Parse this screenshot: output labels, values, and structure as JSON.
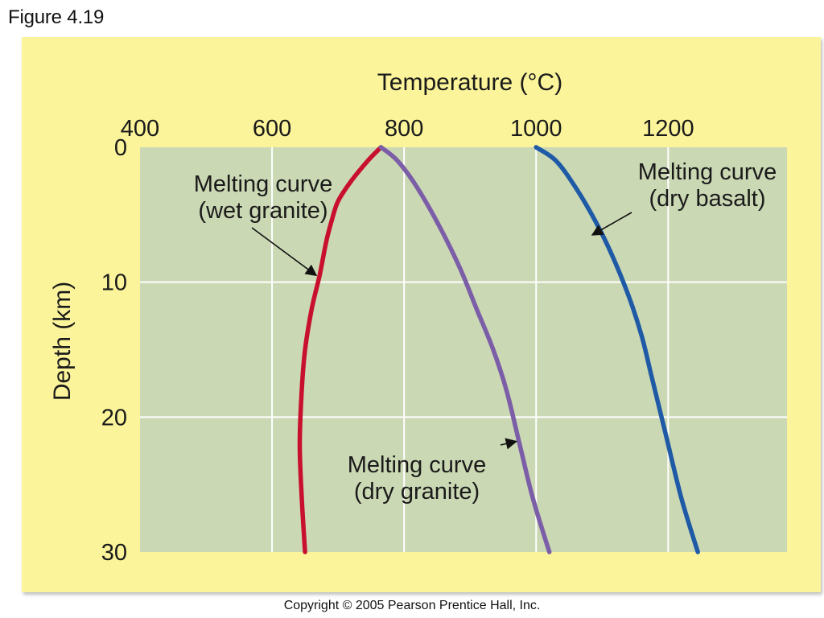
{
  "figure_label": "Figure 4.19",
  "copyright": "Copyright © 2005 Pearson Prentice Hall, Inc.",
  "colors": {
    "panel": "#fbf49a",
    "plot_area": "#cbd8b4",
    "grid": "#ffffff",
    "wet_granite": "#c8102e",
    "dry_granite": "#7b5ea7",
    "dry_basalt": "#1f5aa6"
  },
  "chart_data": {
    "type": "line",
    "title": "",
    "xlabel": "Temperature (°C)",
    "ylabel": "Depth (km)",
    "xlim": [
      400,
      1380
    ],
    "ylim": [
      0,
      30
    ],
    "y_inverted": true,
    "x_ticks": [
      400,
      600,
      800,
      1000,
      1200
    ],
    "x_tick_labels": [
      "400",
      "600",
      "800",
      "1000",
      "1200"
    ],
    "y_ticks": [
      0,
      10,
      20,
      30
    ],
    "y_tick_labels": [
      "0",
      "10",
      "20",
      "30"
    ],
    "x_axis_position": "top",
    "grid": true,
    "series": [
      {
        "id": "wet_granite",
        "label_lines": [
          "Melting curve",
          "(wet granite)"
        ],
        "color": "#c8102e",
        "x": [
          765,
          745,
          720,
          700,
          690,
          682,
          672,
          660,
          650,
          645,
          642,
          645,
          650
        ],
        "y": [
          0,
          1,
          2.5,
          4,
          5.5,
          7,
          9.5,
          12,
          15,
          18,
          22,
          26,
          30
        ]
      },
      {
        "id": "dry_granite",
        "label_lines": [
          "Melting curve",
          "(dry granite)"
        ],
        "color": "#7b5ea7",
        "x": [
          765,
          790,
          820,
          855,
          885,
          910,
          935,
          955,
          975,
          995,
          1020
        ],
        "y": [
          0,
          1,
          3,
          6,
          9,
          12,
          15,
          18,
          22,
          26,
          30
        ]
      },
      {
        "id": "dry_basalt",
        "label_lines": [
          "Melting curve",
          "(dry basalt)"
        ],
        "color": "#1f5aa6",
        "x": [
          1000,
          1030,
          1060,
          1090,
          1115,
          1140,
          1160,
          1175,
          1195,
          1220,
          1245
        ],
        "y": [
          0,
          1,
          3,
          5.5,
          8,
          11,
          14,
          17,
          21,
          26,
          30
        ]
      }
    ],
    "annotations": [
      {
        "series": "wet_granite",
        "text_lines": [
          "Melting curve",
          "(wet granite)"
        ],
        "arrow_to": [
          667,
          9.5
        ]
      },
      {
        "series": "dry_basalt",
        "text_lines": [
          "Melting curve",
          "(dry basalt)"
        ],
        "arrow_to": [
          1085,
          6.5
        ]
      },
      {
        "series": "dry_granite",
        "text_lines": [
          "Melting curve",
          "(dry granite)"
        ],
        "arrow_to": [
          970,
          21.8
        ]
      }
    ]
  }
}
